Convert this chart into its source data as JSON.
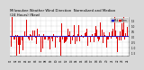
{
  "title_line1": "Milwaukee Weather Wind Direction  Normalized and Median",
  "title_line2": "(24 Hours) (New)",
  "background_color": "#d8d8d8",
  "plot_bg_color": "#ffffff",
  "bar_color": "#dd0000",
  "median_color": "#0000cc",
  "legend_label1": "Norm",
  "legend_label2": "Med",
  "ylim": [
    -1.8,
    1.8
  ],
  "num_points": 288,
  "seed": 42,
  "title_fontsize": 2.8,
  "tick_fontsize": 2.0,
  "median_linewidth": 0.6,
  "bar_width": 0.85,
  "num_xticks": 24,
  "yticks": [
    -1.5,
    -1.0,
    -0.5,
    0.0,
    0.5,
    1.0,
    1.5
  ]
}
